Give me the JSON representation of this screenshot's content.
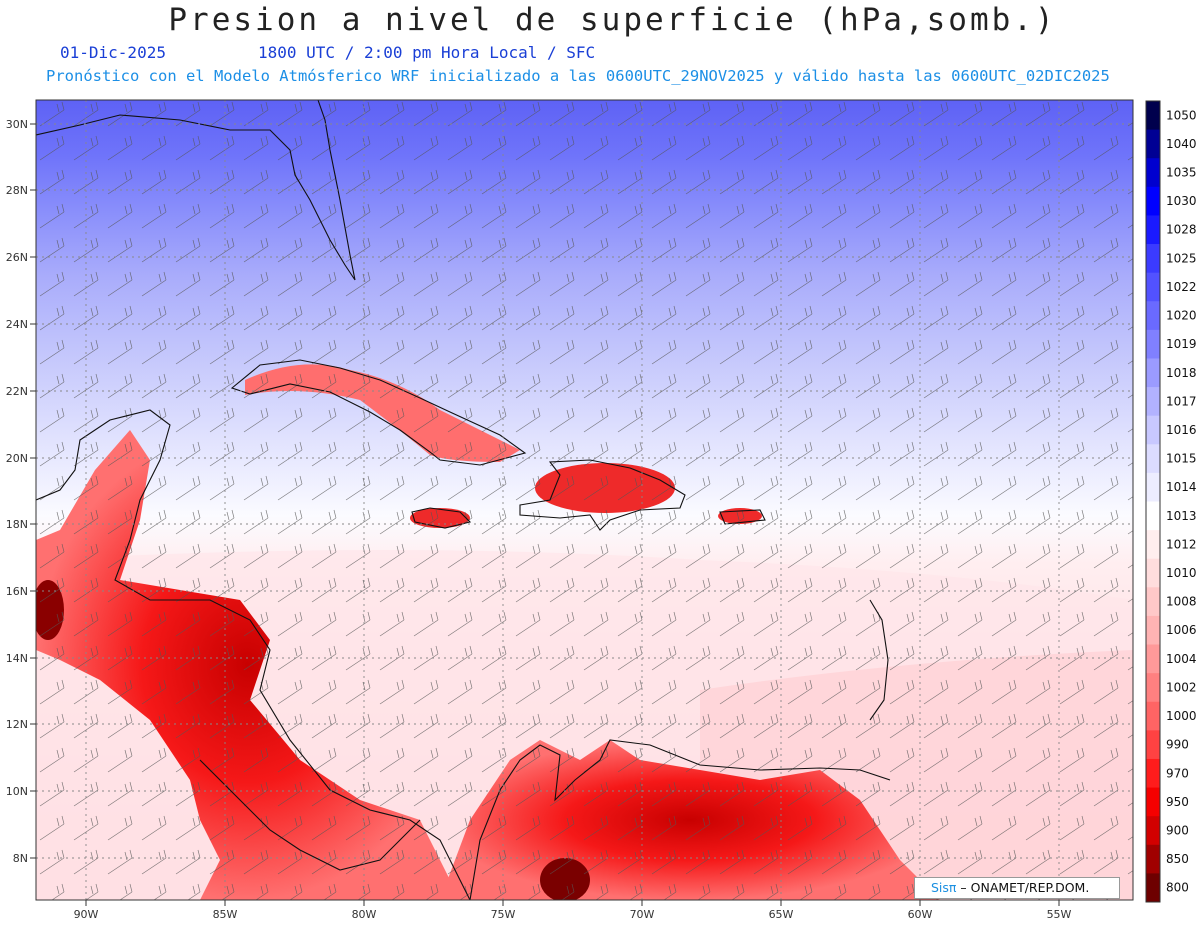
{
  "title": "Presion a nivel de superficie (hPa,somb.)",
  "date": "01-Dic-2025",
  "time_line": "1800 UTC / 2:00 pm Hora Local / SFC",
  "init_line": "Pronóstico con el Modelo Atmósferico WRF inicializado a las 0600UTC_29NOV2025 y válido hasta las  0600UTC_02DIC2025",
  "credit": {
    "brand": "Sisπ",
    "org": " – ONAMET/REP.DOM."
  },
  "lat_labels": [
    "30N",
    "28N",
    "26N",
    "24N",
    "22N",
    "20N",
    "18N",
    "16N",
    "14N",
    "12N",
    "10N",
    "8N"
  ],
  "lon_labels": [
    "90W",
    "85W",
    "80W",
    "75W",
    "70W",
    "65W",
    "60W",
    "55W"
  ],
  "colorbar": {
    "levels": [
      "1050",
      "1040",
      "1035",
      "1030",
      "1028",
      "1025",
      "1022",
      "1020",
      "1019",
      "1018",
      "1017",
      "1016",
      "1015",
      "1014",
      "1013",
      "1012",
      "1010",
      "1008",
      "1006",
      "1004",
      "1002",
      "1000",
      "990",
      "970",
      "950",
      "900",
      "850",
      "800"
    ],
    "colors": [
      "#00004d",
      "#000094",
      "#0000cf",
      "#0000ff",
      "#1a1aff",
      "#3b3bff",
      "#5252ff",
      "#6a6aff",
      "#8080ff",
      "#9b9bff",
      "#b2b2ff",
      "#c8c8ff",
      "#dcdcff",
      "#ededff",
      "#ffffff",
      "#ffeeee",
      "#ffdddd",
      "#ffc8c8",
      "#ffb3b3",
      "#ff9999",
      "#ff8080",
      "#ff6464",
      "#ff4242",
      "#ff1c1c",
      "#f50000",
      "#d20000",
      "#a00000",
      "#6e0000"
    ]
  },
  "legend_colors": {
    "title": "#222222",
    "date_line": "#1a3fd6",
    "init_line": "#1c8fe6"
  }
}
